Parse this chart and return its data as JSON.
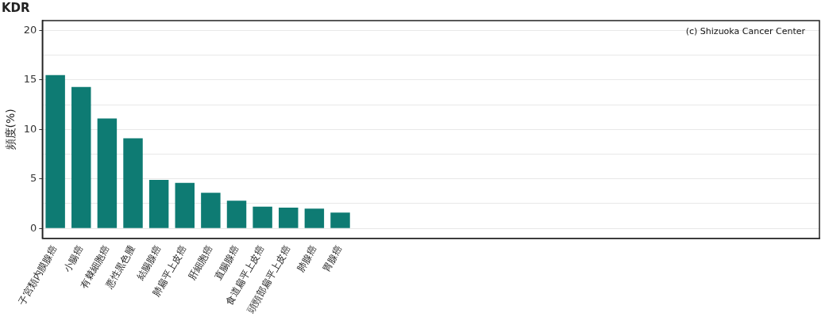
{
  "chart_data": {
    "type": "bar",
    "title": "KDR",
    "ylabel": "頻度(%)",
    "annotations": [
      "(c) Shizuoka Cancer Center"
    ],
    "categories": [
      "子宮類内膜腺癌",
      "小腸癌",
      "有棘細胞癌",
      "悪性黒色腫",
      "結腸腺癌",
      "肺扁平上皮癌",
      "肝細胞癌",
      "直腸腺癌",
      "食道扁平上皮癌",
      "頭頸部扁平上皮癌",
      "肺腺癌",
      "胃腺癌",
      null,
      null,
      null,
      null,
      null,
      null,
      null,
      null,
      null,
      null,
      null,
      null,
      null,
      null,
      null,
      null,
      null,
      null
    ],
    "values": [
      15.5,
      14.3,
      11.1,
      9.1,
      4.9,
      4.6,
      3.6,
      2.8,
      2.2,
      2.1,
      2.0,
      1.6,
      null,
      null,
      null,
      null,
      null,
      null,
      null,
      null,
      null,
      null,
      null,
      null,
      null,
      null,
      null,
      null,
      null,
      null
    ],
    "color": "#0e7b73",
    "ylim": [
      -1,
      21
    ],
    "yticks": [
      0,
      {
        "value": 2.5,
        "label": null
      },
      5,
      {
        "value": 7.5,
        "label": null
      },
      10,
      {
        "value": 12.5,
        "label": null
      },
      15,
      {
        "value": 17.5,
        "label": null
      },
      20
    ],
    "grid": "y",
    "legend": false
  }
}
